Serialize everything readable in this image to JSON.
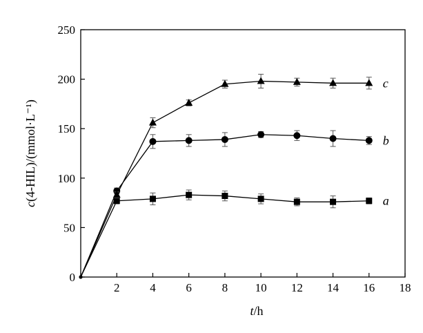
{
  "chart_data": {
    "type": "line",
    "title": "",
    "xlabel": {
      "var": "t",
      "rest": "/h"
    },
    "ylabel": {
      "var": "c",
      "rest": "(4-HIL)/(mmol·L⁻¹)"
    },
    "xlim": [
      0,
      18
    ],
    "ylim": [
      0,
      250
    ],
    "xticks": [
      0,
      2,
      4,
      6,
      8,
      10,
      12,
      14,
      16,
      18
    ],
    "xtick_labels": [
      "",
      "2",
      "4",
      "6",
      "8",
      "10",
      "12",
      "14",
      "16",
      "18"
    ],
    "yticks": [
      0,
      50,
      100,
      150,
      200,
      250
    ],
    "ytick_labels": [
      "0",
      "50",
      "100",
      "150",
      "200",
      "250"
    ],
    "grid": false,
    "series": [
      {
        "name": "a",
        "marker": "square",
        "x": [
          0,
          2,
          4,
          6,
          8,
          10,
          12,
          14,
          16
        ],
        "y": [
          0,
          77,
          79,
          83,
          82,
          79,
          76,
          76,
          77
        ],
        "err": [
          0,
          3,
          6,
          5,
          5,
          5,
          4,
          6,
          3
        ]
      },
      {
        "name": "b",
        "marker": "circle",
        "x": [
          0,
          2,
          4,
          6,
          8,
          10,
          12,
          14,
          16
        ],
        "y": [
          0,
          87,
          137,
          138,
          139,
          144,
          143,
          140,
          138
        ],
        "err": [
          0,
          3,
          7,
          6,
          7,
          3,
          5,
          8,
          4
        ]
      },
      {
        "name": "c",
        "marker": "triangle",
        "x": [
          0,
          2,
          4,
          6,
          8,
          10,
          12,
          14,
          16
        ],
        "y": [
          0,
          83,
          156,
          176,
          195,
          198,
          197,
          196,
          196
        ],
        "err": [
          0,
          3,
          5,
          3,
          4,
          7,
          4,
          5,
          6
        ]
      }
    ]
  }
}
